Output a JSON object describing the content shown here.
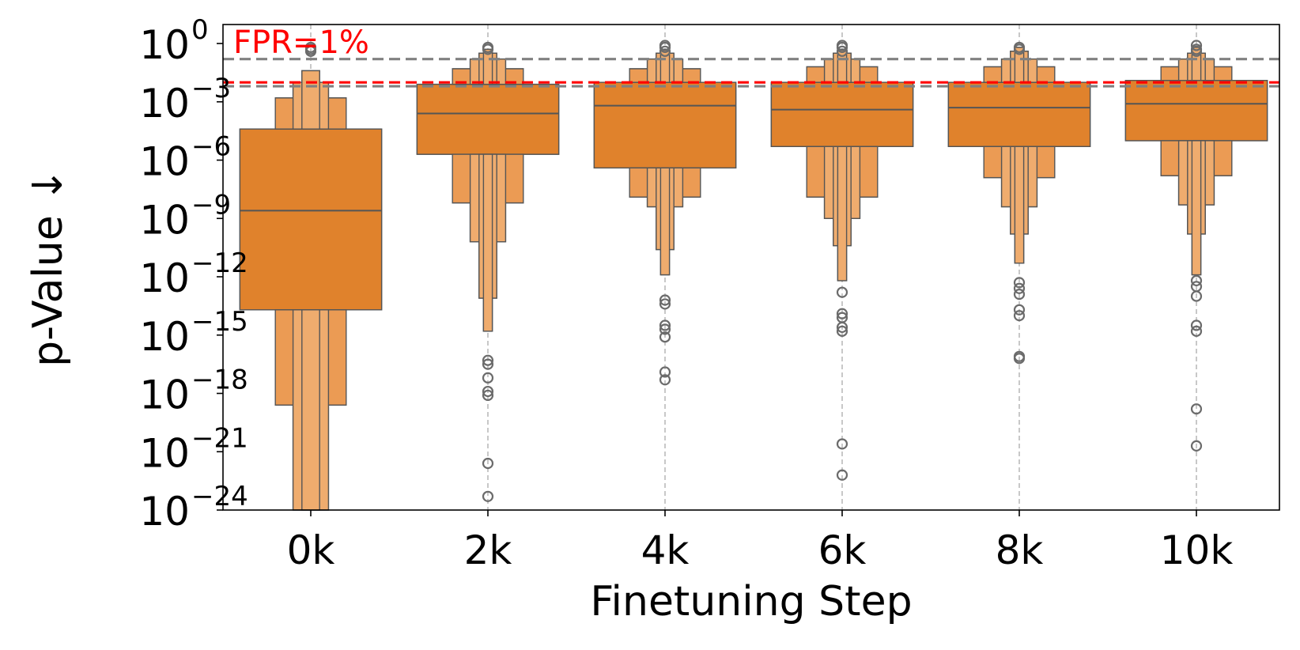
{
  "chart_data": {
    "type": "boxen",
    "xlabel": "Finetuning Step",
    "ylabel": "p-Value ↓",
    "yscale": "log",
    "ylim_log10": [
      -24,
      1
    ],
    "ytick_exponents": [
      0,
      -3,
      -6,
      -9,
      -12,
      -15,
      -18,
      -21,
      -24
    ],
    "ytick_base": "10",
    "categories": [
      "0k",
      "2k",
      "4k",
      "6k",
      "8k",
      "10k"
    ],
    "reference_lines": [
      {
        "label": "FPR=1%",
        "log10_value": -2.0,
        "color": "#ff0000",
        "style": "dashed"
      },
      {
        "log10_value": -0.8,
        "color": "#808080",
        "style": "dashed"
      },
      {
        "log10_value": -2.2,
        "color": "#808080",
        "style": "dashed"
      }
    ],
    "series": [
      {
        "category": "0k",
        "median_log10": -8.6,
        "boxes": [
          {
            "width": 0.8,
            "lo": -13.7,
            "hi": -4.4
          },
          {
            "width": 0.4,
            "lo": -18.6,
            "hi": -2.8
          },
          {
            "width": 0.2,
            "lo": -24.0,
            "hi": -2.0
          },
          {
            "width": 0.1,
            "lo": -24.0,
            "hi": -1.4
          }
        ],
        "outliers_log10": [
          -0.2,
          -0.3,
          -0.4
        ]
      },
      {
        "category": "2k",
        "median_log10": -3.6,
        "boxes": [
          {
            "width": 0.8,
            "lo": -5.7,
            "hi": -2.1
          },
          {
            "width": 0.4,
            "lo": -8.2,
            "hi": -1.3
          },
          {
            "width": 0.2,
            "lo": -10.2,
            "hi": -0.8
          },
          {
            "width": 0.1,
            "lo": -13.1,
            "hi": -0.5
          },
          {
            "width": 0.05,
            "lo": -14.8,
            "hi": -0.3
          }
        ],
        "outliers_log10": [
          -0.2,
          -0.3,
          -16.3,
          -16.5,
          -17.2,
          -17.9,
          -18.1,
          -21.6,
          -23.3
        ]
      },
      {
        "category": "4k",
        "median_log10": -3.2,
        "boxes": [
          {
            "width": 0.8,
            "lo": -6.4,
            "hi": -2.0
          },
          {
            "width": 0.4,
            "lo": -7.9,
            "hi": -1.3
          },
          {
            "width": 0.2,
            "lo": -8.4,
            "hi": -0.8
          },
          {
            "width": 0.1,
            "lo": -10.6,
            "hi": -0.5
          },
          {
            "width": 0.05,
            "lo": -11.9,
            "hi": -0.3
          }
        ],
        "outliers_log10": [
          -0.1,
          -0.2,
          -0.4,
          -13.2,
          -13.4,
          -14.5,
          -14.7,
          -15.1,
          -16.9,
          -17.3
        ]
      },
      {
        "category": "6k",
        "median_log10": -3.4,
        "boxes": [
          {
            "width": 0.8,
            "lo": -5.3,
            "hi": -2.0
          },
          {
            "width": 0.4,
            "lo": -7.9,
            "hi": -1.2
          },
          {
            "width": 0.2,
            "lo": -9.0,
            "hi": -0.8
          },
          {
            "width": 0.1,
            "lo": -10.4,
            "hi": -0.5
          },
          {
            "width": 0.05,
            "lo": -12.2,
            "hi": -0.3
          }
        ],
        "outliers_log10": [
          -0.1,
          -0.2,
          -0.4,
          -12.8,
          -13.9,
          -14.1,
          -14.6,
          -14.8,
          -20.6,
          -22.2
        ]
      },
      {
        "category": "8k",
        "median_log10": -3.3,
        "boxes": [
          {
            "width": 0.8,
            "lo": -5.3,
            "hi": -2.0
          },
          {
            "width": 0.4,
            "lo": -6.9,
            "hi": -1.2
          },
          {
            "width": 0.2,
            "lo": -8.4,
            "hi": -0.8
          },
          {
            "width": 0.1,
            "lo": -9.8,
            "hi": -0.4
          },
          {
            "width": 0.05,
            "lo": -11.3,
            "hi": -0.2
          }
        ],
        "outliers_log10": [
          -0.2,
          -0.3,
          -12.3,
          -12.6,
          -12.9,
          -13.7,
          -14.0,
          -16.1,
          -16.2
        ]
      },
      {
        "category": "10k",
        "median_log10": -3.1,
        "boxes": [
          {
            "width": 0.8,
            "lo": -5.0,
            "hi": -1.9
          },
          {
            "width": 0.4,
            "lo": -6.8,
            "hi": -1.2
          },
          {
            "width": 0.2,
            "lo": -8.3,
            "hi": -0.8
          },
          {
            "width": 0.1,
            "lo": -9.8,
            "hi": -0.5
          },
          {
            "width": 0.05,
            "lo": -11.9,
            "hi": -0.2
          }
        ],
        "outliers_log10": [
          -0.1,
          -0.3,
          -0.4,
          -12.2,
          -12.5,
          -13.0,
          -14.5,
          -14.8,
          -18.8,
          -20.7
        ]
      }
    ],
    "colors": {
      "box_main": "#e0822c",
      "box_light": "#eb9b54",
      "box_lighter": "#efac6e",
      "box_edge": "#555555",
      "outlier": "#6b6b6b",
      "grid": "#b0b0b0",
      "fpr_line": "#ff0000",
      "ref_line": "#808080"
    }
  }
}
